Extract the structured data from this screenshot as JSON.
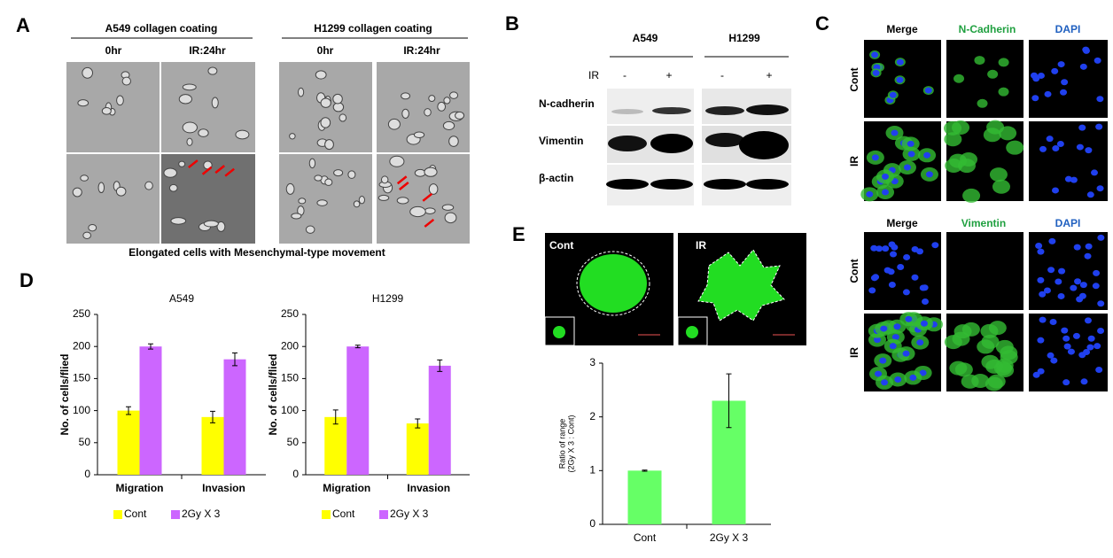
{
  "panels": {
    "labels": [
      "A",
      "B",
      "C",
      "D",
      "E"
    ]
  },
  "panel_a": {
    "groups": [
      {
        "title": "A549 collagen coating",
        "times": [
          "0hr",
          "IR:24hr"
        ]
      },
      {
        "title": "H1299  collagen coating",
        "times": [
          "0hr",
          "IR:24hr"
        ]
      }
    ],
    "caption": "Elongated cells with Mesenchymal-type movement"
  },
  "panel_b": {
    "cell_lines": [
      "A549",
      "H1299"
    ],
    "treatment_label": "IR",
    "treatments": [
      "-",
      "+",
      "-",
      "+"
    ],
    "proteins": [
      "N-cadherin",
      "Vimentin",
      "β-actin"
    ]
  },
  "panel_c": {
    "blocks": [
      {
        "headers": [
          "Merge",
          "N-Cadherin",
          "DAPI"
        ],
        "rows": [
          "Cont",
          "IR"
        ]
      },
      {
        "headers": [
          "Merge",
          "Vimentin",
          "DAPI"
        ],
        "rows": [
          "Cont",
          "IR"
        ]
      }
    ]
  },
  "panel_e": {
    "image_labels": [
      "Cont",
      "IR"
    ]
  },
  "chart_data": [
    {
      "type": "bar",
      "title": "A549",
      "ylabel": [
        "No. of cells/flied"
      ],
      "categories": [
        "Migration",
        "Invasion"
      ],
      "series": [
        {
          "name": "Cont",
          "color": "#ffff00",
          "values": [
            100,
            90
          ],
          "errors": [
            6,
            9
          ]
        },
        {
          "name": "2Gy X 3",
          "color": "#cc66ff",
          "values": [
            200,
            180
          ],
          "errors": [
            4,
            10
          ]
        }
      ],
      "ylim": [
        0,
        250
      ],
      "yticks": [
        0,
        50,
        100,
        150,
        200,
        250
      ],
      "legend": "bottom"
    },
    {
      "type": "bar",
      "title": "H1299",
      "ylabel": [
        "No. of cells/flied"
      ],
      "categories": [
        "Migration",
        "Invasion"
      ],
      "series": [
        {
          "name": "Cont",
          "color": "#ffff00",
          "values": [
            90,
            80
          ],
          "errors": [
            11,
            7
          ]
        },
        {
          "name": "2Gy X 3",
          "color": "#cc66ff",
          "values": [
            200,
            170
          ],
          "errors": [
            2,
            9
          ]
        }
      ],
      "ylim": [
        0,
        250
      ],
      "yticks": [
        0,
        50,
        100,
        150,
        200,
        250
      ],
      "legend": "bottom"
    },
    {
      "type": "bar",
      "ylabel": [
        "Ratio of range",
        "(2Gy X 3 : Cont)"
      ],
      "categories": [
        "Cont",
        "2Gy X 3"
      ],
      "series": [
        {
          "color": "#66ff66",
          "values": [
            1,
            2.3
          ],
          "errors": [
            0.01,
            0.5
          ]
        }
      ],
      "ylim": [
        0,
        3
      ],
      "yticks": [
        0,
        1,
        2,
        3
      ]
    }
  ]
}
